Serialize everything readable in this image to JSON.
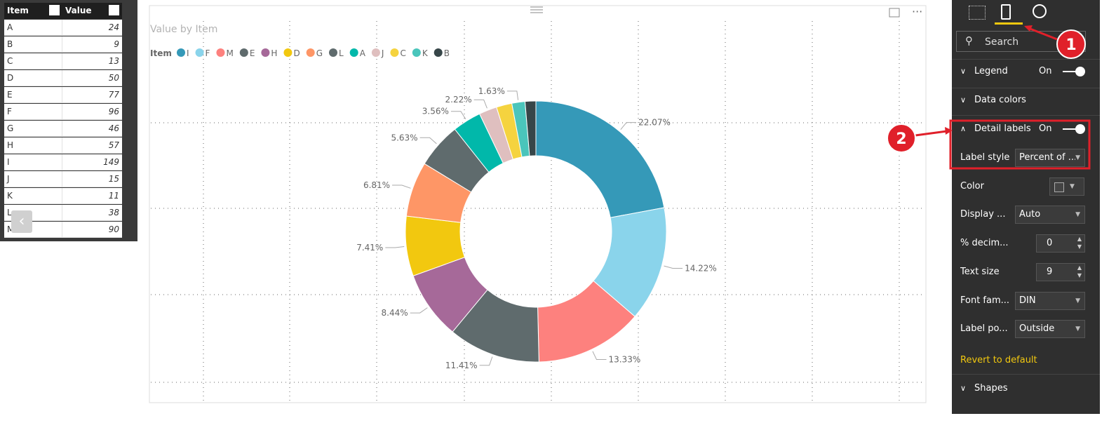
{
  "table": {
    "columns": [
      "Item",
      "Value"
    ],
    "rows": [
      [
        "A",
        24
      ],
      [
        "B",
        9
      ],
      [
        "C",
        13
      ],
      [
        "D",
        50
      ],
      [
        "E",
        77
      ],
      [
        "F",
        96
      ],
      [
        "G",
        46
      ],
      [
        "H",
        57
      ],
      [
        "I",
        149
      ],
      [
        "J",
        15
      ],
      [
        "K",
        11
      ],
      [
        "L",
        38
      ],
      [
        "M",
        90
      ]
    ]
  },
  "chart_data": {
    "type": "donut",
    "title": "Value by Item",
    "legend_title": "Item",
    "categories": [
      "I",
      "F",
      "M",
      "E",
      "H",
      "D",
      "G",
      "L",
      "A",
      "J",
      "C",
      "K",
      "B"
    ],
    "values": [
      22.07,
      14.22,
      13.33,
      11.41,
      8.44,
      7.41,
      6.81,
      5.63,
      3.56,
      2.22,
      1.93,
      1.63,
      1.33
    ],
    "value_labels": [
      "22.07%",
      "14.22%",
      "13.33%",
      "11.41%",
      "8.44%",
      "7.41%",
      "6.81%",
      "5.63%",
      "3.56%",
      "2.22%",
      null,
      "1.63%",
      null
    ],
    "colors": [
      "#3599b8",
      "#8ad4eb",
      "#fd817e",
      "#5f6b6d",
      "#a66999",
      "#f2c80f",
      "#fe9666",
      "#5f6b6d",
      "#01b8aa",
      "#dfbfbf",
      "#f5d33f",
      "#4ac5bb",
      "#374649"
    ]
  },
  "format_pane": {
    "search": "Search",
    "legend": {
      "label": "Legend",
      "state": "On"
    },
    "data_colors": "Data colors",
    "detail_labels": {
      "label": "Detail labels",
      "state": "On"
    },
    "options": [
      {
        "label": "Label style",
        "value": "Percent of ..."
      },
      {
        "label": "Color"
      },
      {
        "label": "Display ...",
        "value": "Auto"
      },
      {
        "label": "% decim...",
        "value": 0
      },
      {
        "label": "Text size",
        "value": 9
      },
      {
        "label": "Font fam...",
        "value": "DIN"
      },
      {
        "label": "Label po...",
        "value": "Outside"
      }
    ],
    "revert": "Revert to default",
    "shapes": "Shapes"
  },
  "callouts": [
    "1",
    "2"
  ]
}
